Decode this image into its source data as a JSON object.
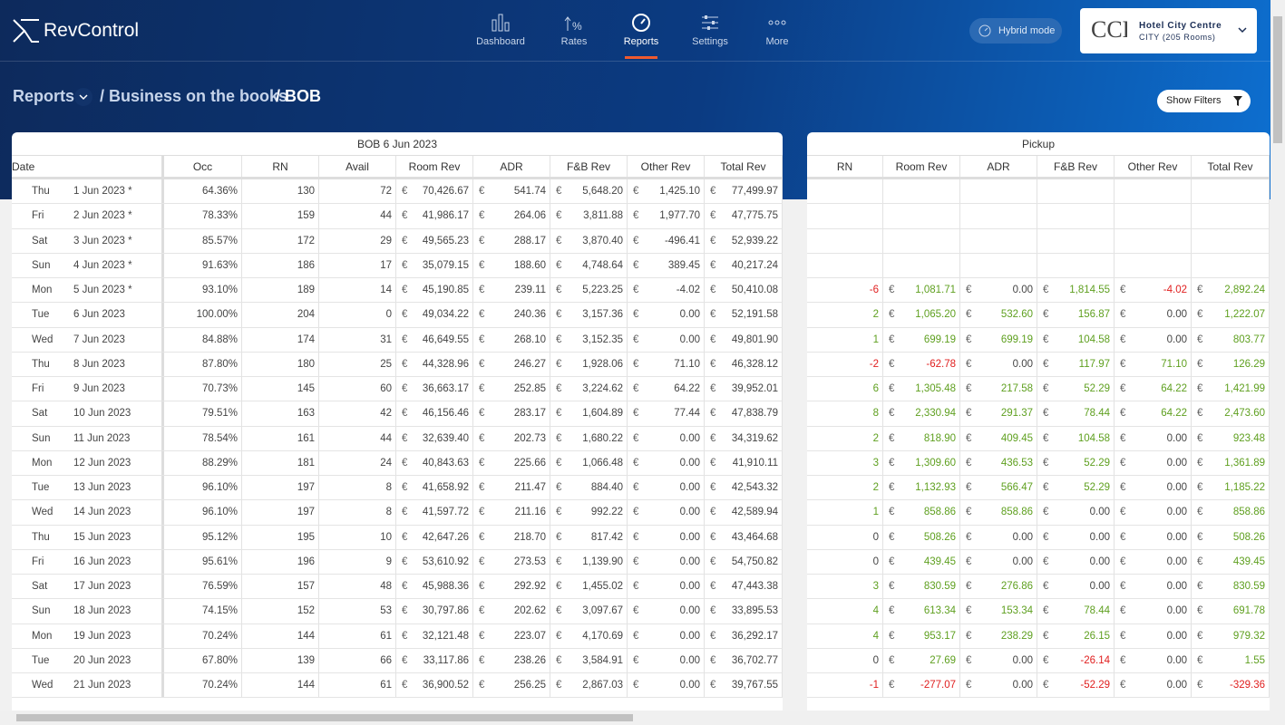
{
  "header": {
    "brand": "RevControl",
    "nav": [
      "Dashboard",
      "Rates",
      "Reports",
      "Settings",
      "More"
    ],
    "active_nav": 2,
    "mode": "Hybrid mode",
    "hotel": {
      "name": "Hotel City Centre",
      "detail": "CITY (205 Rooms)"
    }
  },
  "breadcrumb": [
    "Reports",
    "Business on the books",
    "BOB"
  ],
  "filters_button": "Show Filters",
  "currency": "€",
  "bob": {
    "title": "BOB 6 Jun 2023",
    "columns": [
      "Date",
      "Occ",
      "RN",
      "Avail",
      "Room Rev",
      "ADR",
      "F&B Rev",
      "Other Rev",
      "Total Rev"
    ],
    "rows": [
      [
        "Thu",
        "1 Jun 2023 *",
        "64.36%",
        "130",
        "72",
        "70,426.67",
        "541.74",
        "5,648.20",
        "1,425.10",
        "77,499.97"
      ],
      [
        "Fri",
        "2 Jun 2023 *",
        "78.33%",
        "159",
        "44",
        "41,986.17",
        "264.06",
        "3,811.88",
        "1,977.70",
        "47,775.75"
      ],
      [
        "Sat",
        "3 Jun 2023 *",
        "85.57%",
        "172",
        "29",
        "49,565.23",
        "288.17",
        "3,870.40",
        "-496.41",
        "52,939.22"
      ],
      [
        "Sun",
        "4 Jun 2023 *",
        "91.63%",
        "186",
        "17",
        "35,079.15",
        "188.60",
        "4,748.64",
        "389.45",
        "40,217.24"
      ],
      [
        "Mon",
        "5 Jun 2023 *",
        "93.10%",
        "189",
        "14",
        "45,190.85",
        "239.11",
        "5,223.25",
        "-4.02",
        "50,410.08"
      ],
      [
        "Tue",
        "6 Jun 2023",
        "100.00%",
        "204",
        "0",
        "49,034.22",
        "240.36",
        "3,157.36",
        "0.00",
        "52,191.58"
      ],
      [
        "Wed",
        "7 Jun 2023",
        "84.88%",
        "174",
        "31",
        "46,649.55",
        "268.10",
        "3,152.35",
        "0.00",
        "49,801.90"
      ],
      [
        "Thu",
        "8 Jun 2023",
        "87.80%",
        "180",
        "25",
        "44,328.96",
        "246.27",
        "1,928.06",
        "71.10",
        "46,328.12"
      ],
      [
        "Fri",
        "9 Jun 2023",
        "70.73%",
        "145",
        "60",
        "36,663.17",
        "252.85",
        "3,224.62",
        "64.22",
        "39,952.01"
      ],
      [
        "Sat",
        "10 Jun 2023",
        "79.51%",
        "163",
        "42",
        "46,156.46",
        "283.17",
        "1,604.89",
        "77.44",
        "47,838.79"
      ],
      [
        "Sun",
        "11 Jun 2023",
        "78.54%",
        "161",
        "44",
        "32,639.40",
        "202.73",
        "1,680.22",
        "0.00",
        "34,319.62"
      ],
      [
        "Mon",
        "12 Jun 2023",
        "88.29%",
        "181",
        "24",
        "40,843.63",
        "225.66",
        "1,066.48",
        "0.00",
        "41,910.11"
      ],
      [
        "Tue",
        "13 Jun 2023",
        "96.10%",
        "197",
        "8",
        "41,658.92",
        "211.47",
        "884.40",
        "0.00",
        "42,543.32"
      ],
      [
        "Wed",
        "14 Jun 2023",
        "96.10%",
        "197",
        "8",
        "41,597.72",
        "211.16",
        "992.22",
        "0.00",
        "42,589.94"
      ],
      [
        "Thu",
        "15 Jun 2023",
        "95.12%",
        "195",
        "10",
        "42,647.26",
        "218.70",
        "817.42",
        "0.00",
        "43,464.68"
      ],
      [
        "Fri",
        "16 Jun 2023",
        "95.61%",
        "196",
        "9",
        "53,610.92",
        "273.53",
        "1,139.90",
        "0.00",
        "54,750.82"
      ],
      [
        "Sat",
        "17 Jun 2023",
        "76.59%",
        "157",
        "48",
        "45,988.36",
        "292.92",
        "1,455.02",
        "0.00",
        "47,443.38"
      ],
      [
        "Sun",
        "18 Jun 2023",
        "74.15%",
        "152",
        "53",
        "30,797.86",
        "202.62",
        "3,097.67",
        "0.00",
        "33,895.53"
      ],
      [
        "Mon",
        "19 Jun 2023",
        "70.24%",
        "144",
        "61",
        "32,121.48",
        "223.07",
        "4,170.69",
        "0.00",
        "36,292.17"
      ],
      [
        "Tue",
        "20 Jun 2023",
        "67.80%",
        "139",
        "66",
        "33,117.86",
        "238.26",
        "3,584.91",
        "0.00",
        "36,702.77"
      ],
      [
        "Wed",
        "21 Jun 2023",
        "70.24%",
        "144",
        "61",
        "36,900.52",
        "256.25",
        "2,867.03",
        "0.00",
        "39,767.55"
      ]
    ]
  },
  "pickup": {
    "title": "Pickup",
    "columns": [
      "RN",
      "Room Rev",
      "ADR",
      "F&B Rev",
      "Other Rev",
      "Total Rev"
    ],
    "rows": [
      null,
      null,
      null,
      null,
      [
        "-6",
        "1,081.71",
        "0.00",
        "1,814.55",
        "-4.02",
        "2,892.24"
      ],
      [
        "2",
        "1,065.20",
        "532.60",
        "156.87",
        "0.00",
        "1,222.07"
      ],
      [
        "1",
        "699.19",
        "699.19",
        "104.58",
        "0.00",
        "803.77"
      ],
      [
        "-2",
        "-62.78",
        "0.00",
        "117.97",
        "71.10",
        "126.29"
      ],
      [
        "6",
        "1,305.48",
        "217.58",
        "52.29",
        "64.22",
        "1,421.99"
      ],
      [
        "8",
        "2,330.94",
        "291.37",
        "78.44",
        "64.22",
        "2,473.60"
      ],
      [
        "2",
        "818.90",
        "409.45",
        "104.58",
        "0.00",
        "923.48"
      ],
      [
        "3",
        "1,309.60",
        "436.53",
        "52.29",
        "0.00",
        "1,361.89"
      ],
      [
        "2",
        "1,132.93",
        "566.47",
        "52.29",
        "0.00",
        "1,185.22"
      ],
      [
        "1",
        "858.86",
        "858.86",
        "0.00",
        "0.00",
        "858.86"
      ],
      [
        "0",
        "508.26",
        "0.00",
        "0.00",
        "0.00",
        "508.26"
      ],
      [
        "0",
        "439.45",
        "0.00",
        "0.00",
        "0.00",
        "439.45"
      ],
      [
        "3",
        "830.59",
        "276.86",
        "0.00",
        "0.00",
        "830.59"
      ],
      [
        "4",
        "613.34",
        "153.34",
        "78.44",
        "0.00",
        "691.78"
      ],
      [
        "4",
        "953.17",
        "238.29",
        "26.15",
        "0.00",
        "979.32"
      ],
      [
        "0",
        "27.69",
        "0.00",
        "-26.14",
        "0.00",
        "1.55"
      ],
      [
        "-1",
        "-277.07",
        "0.00",
        "-52.29",
        "0.00",
        "-329.36"
      ]
    ]
  }
}
